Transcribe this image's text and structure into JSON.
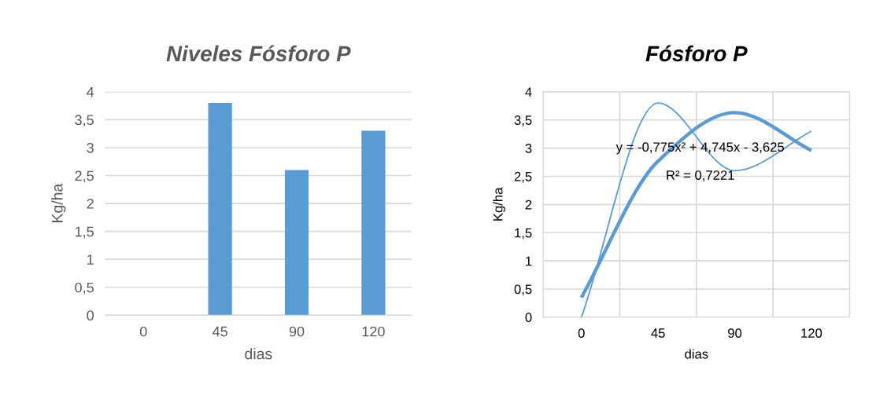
{
  "chart_data": [
    {
      "type": "bar",
      "title": "Niveles Fósforo P",
      "xlabel": "dias",
      "ylabel": "Kg/ha",
      "categories": [
        "0",
        "45",
        "90",
        "120"
      ],
      "values": [
        0,
        3.8,
        2.6,
        3.3
      ],
      "color": "#5b9bd5",
      "ylim": [
        0,
        4
      ],
      "yticks": [
        {
          "value": 0,
          "label": "0"
        },
        {
          "value": 0.5,
          "label": "0,5"
        },
        {
          "value": 1,
          "label": "1"
        },
        {
          "value": 1.5,
          "label": "1,5"
        },
        {
          "value": 2,
          "label": "2"
        },
        {
          "value": 2.5,
          "label": "2,5"
        },
        {
          "value": 3,
          "label": "3"
        },
        {
          "value": 3.5,
          "label": "3,5"
        },
        {
          "value": 4,
          "label": "4"
        }
      ],
      "grid": "y",
      "legend": false
    },
    {
      "type": "line",
      "title": "Fósforo P",
      "xlabel": "dias",
      "ylabel": "Kg/ha",
      "categories": [
        "0",
        "45",
        "90",
        "120"
      ],
      "series": [
        {
          "color": "#5b9bd5",
          "values": [
            0,
            3.8,
            2.6,
            3.3
          ]
        },
        {
          "type": "line",
          "color": "#5b9bd5",
          "values": [
            0.35,
            2.77,
            3.63,
            2.96
          ]
        }
      ],
      "annotations": [
        "y = -0,775x² + 4,745x - 3,625",
        "R² = 0,7221"
      ],
      "ylim": [
        0,
        4
      ],
      "yticks": [
        {
          "value": 0,
          "label": "0"
        },
        {
          "value": 0.5,
          "label": "0,5"
        },
        {
          "value": 1,
          "label": "1"
        },
        {
          "value": 1.5,
          "label": "1,5"
        },
        {
          "value": 2,
          "label": "2"
        },
        {
          "value": 2.5,
          "label": "2,5"
        },
        {
          "value": 3,
          "label": "3"
        },
        {
          "value": 3.5,
          "label": "3,5"
        },
        {
          "value": 4,
          "label": "4"
        }
      ],
      "grid": true,
      "legend": false,
      "marker": "none",
      "line_style": "solid"
    }
  ]
}
